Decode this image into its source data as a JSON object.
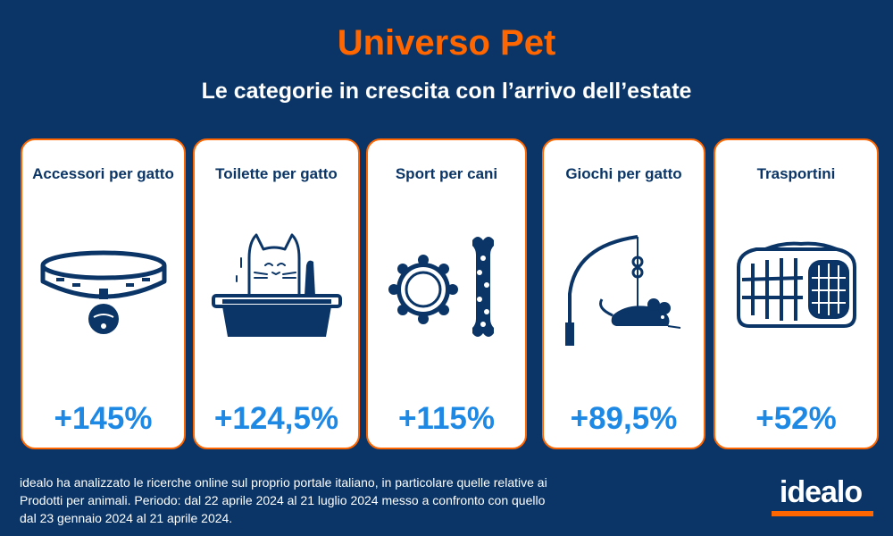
{
  "header": {
    "title": "Universo Pet",
    "subtitle": "Le categorie in crescita con l’arrivo dell’estate"
  },
  "colors": {
    "background": "#0a3566",
    "accent": "#ff6600",
    "value": "#1e88e5",
    "card": "#ffffff"
  },
  "cards": [
    {
      "title": "Accessori per gatto",
      "value": "+145%",
      "icon": "cat-collar-icon"
    },
    {
      "title": "Toilette per gatto",
      "value": "+124,5%",
      "icon": "litter-box-icon"
    },
    {
      "title": "Sport per cani",
      "value": "+115%",
      "icon": "dog-toys-icon"
    },
    {
      "title": "Giochi per gatto",
      "value": "+89,5%",
      "icon": "cat-wand-mouse-icon"
    },
    {
      "title": "Trasportini",
      "value": "+52%",
      "icon": "pet-carrier-icon"
    }
  ],
  "footnote": "idealo ha analizzato le ricerche online sul proprio portale italiano, in particolare quelle relative ai Prodotti per animali. Periodo: dal 22 aprile 2024 al 21 luglio 2024 messo a confronto con quello dal 23 gennaio 2024 al 21 aprile 2024.",
  "logo": "idealo"
}
